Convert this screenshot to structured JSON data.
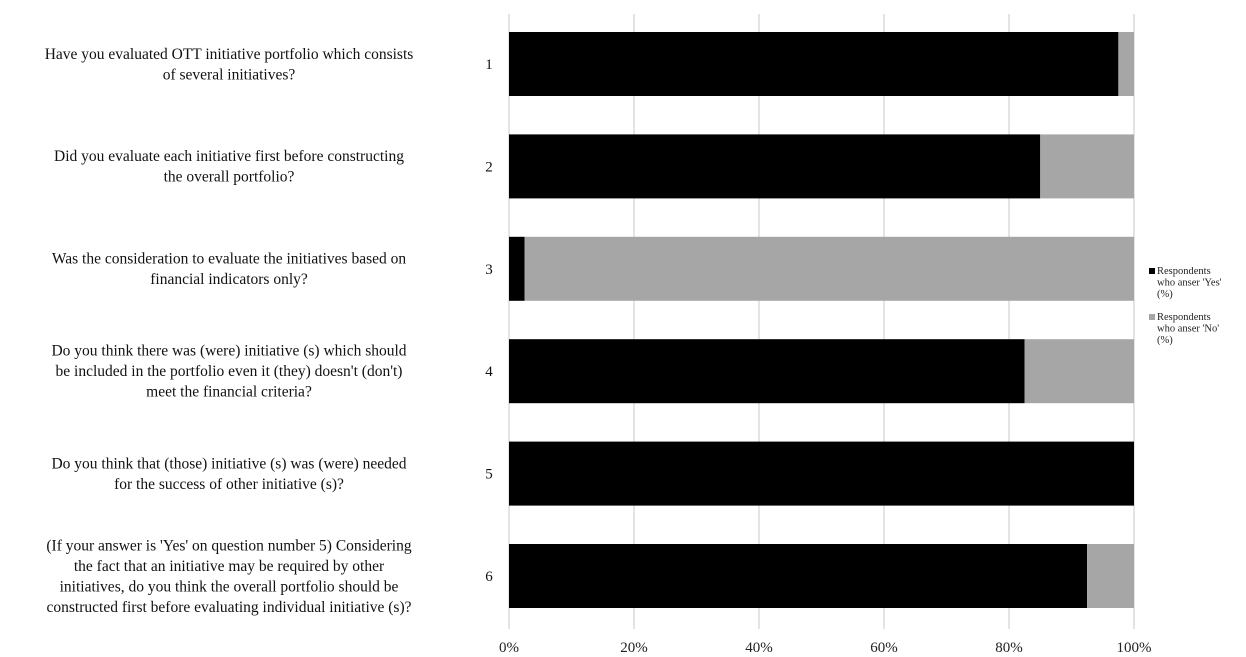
{
  "chart_data": {
    "type": "bar",
    "orientation": "horizontal",
    "stacked": true,
    "percent_stacked": true,
    "categories": [
      "1",
      "2",
      "3",
      "4",
      "5",
      "6"
    ],
    "questions": [
      [
        "Have you evaluated OTT initiative portfolio which consists",
        "of several initiatives?"
      ],
      [
        "Did you evaluate each initiative first before constructing",
        "the overall portfolio?"
      ],
      [
        "Was the consideration to evaluate the initiatives based on",
        "financial indicators only?"
      ],
      [
        "Do you think there was (were) initiative (s) which should",
        "be included in the portfolio even it (they) doesn't (don't)",
        "meet the financial criteria?"
      ],
      [
        "Do you think that (those) initiative (s) was (were) needed",
        "for the success of other initiative (s)?"
      ],
      [
        "(If your answer is 'Yes' on question number 5) Considering",
        "the fact that an initiative may be required by other",
        "initiatives, do you think the overall portfolio should be",
        "constructed first before evaluating individual initiative (s)?"
      ]
    ],
    "series": [
      {
        "name": "Respondents who anser 'Yes' (%)",
        "legend_lines": [
          "Respondents",
          "who anser 'Yes'",
          "(%)"
        ],
        "color": "#000000",
        "values": [
          97.5,
          85,
          2.5,
          82.5,
          100,
          92.5
        ]
      },
      {
        "name": "Respondents who anser 'No' (%)",
        "legend_lines": [
          "Respondents",
          "who anser 'No'",
          "(%)"
        ],
        "color": "#a6a6a6",
        "values": [
          2.5,
          15,
          97.5,
          17.5,
          0,
          7.5
        ]
      }
    ],
    "xlim": [
      0,
      100
    ],
    "xticks": [
      "0%",
      "20%",
      "40%",
      "60%",
      "80%",
      "100%"
    ],
    "grid": true,
    "legend_position": "right"
  }
}
